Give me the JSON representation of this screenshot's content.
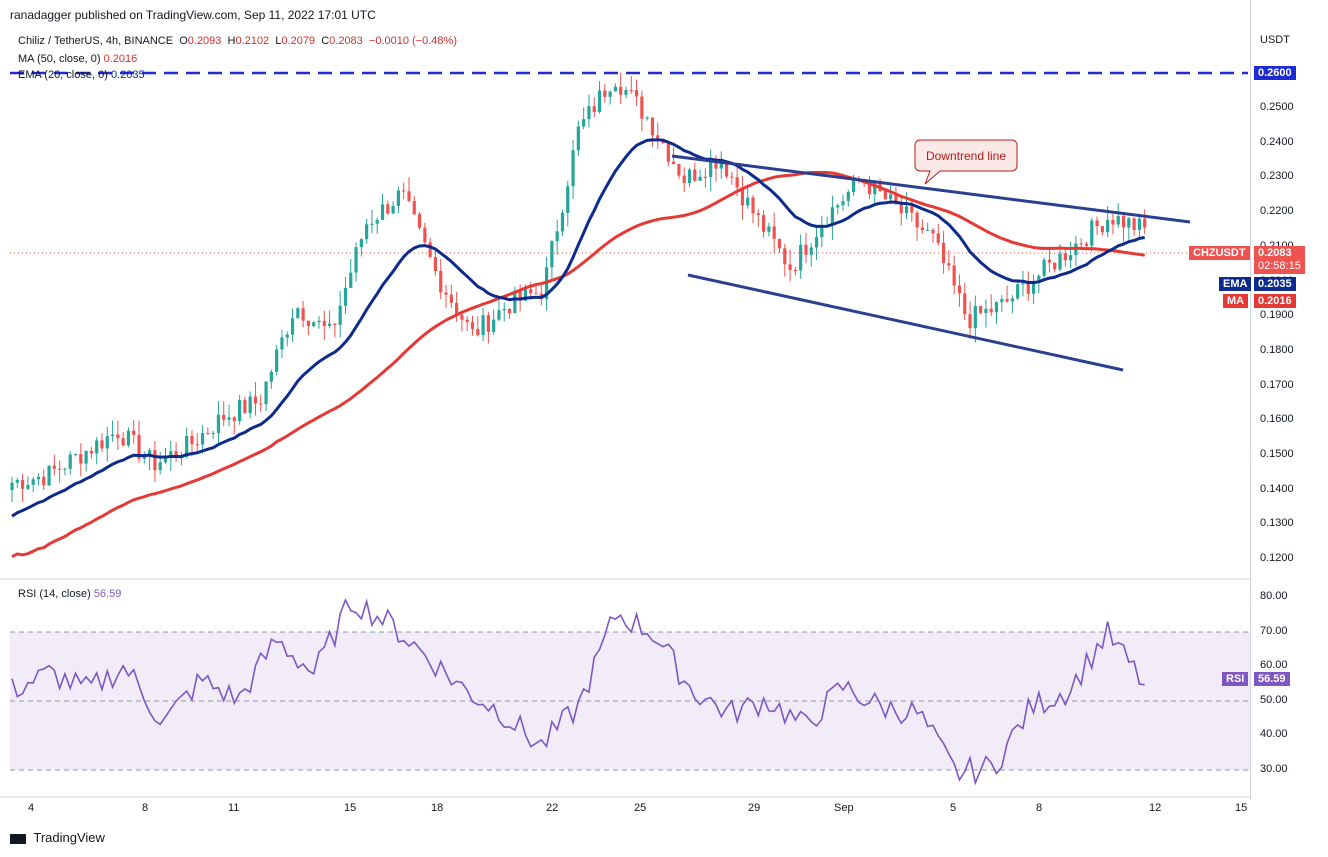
{
  "header": {
    "publisher": "ranadagger published on TradingView.com, Sep 11, 2022 17:01 UTC"
  },
  "legend": {
    "symbol": "Chiliz / TetherUS, 4h, BINANCE",
    "o_label": "O",
    "o": "0.2093",
    "h_label": "H",
    "h": "0.2102",
    "l_label": "L",
    "l": "0.2079",
    "c_label": "C",
    "c": "0.2083",
    "change": "−0.0010 (−0.48%)",
    "ma_label": "MA (50, close, 0)",
    "ma_value": "0.2016",
    "ema_label": "EMA (20, close, 0)",
    "ema_value": "0.2035",
    "rsi_label": "RSI (14, close)",
    "rsi_value": "56.59"
  },
  "price_axis": {
    "unit": "USDT",
    "ticks": [
      "0.2500",
      "0.2400",
      "0.2300",
      "0.2200",
      "0.2100",
      "0.2000",
      "0.1900",
      "0.1800",
      "0.1700",
      "0.1600",
      "0.1500",
      "0.1400",
      "0.1300",
      "0.1200"
    ],
    "resistance_label": "0.2600"
  },
  "tags": {
    "symbol_tag": "CHZUSDT",
    "price": "0.2083",
    "countdown": "02:58:15",
    "ema_tag": "EMA",
    "ema": "0.2035",
    "ma_tag": "MA",
    "ma": "0.2016",
    "rsi_tag": "RSI",
    "rsi": "56.59"
  },
  "rsi_axis": {
    "ticks": [
      "80.00",
      "70.00",
      "60.00",
      "50.00",
      "40.00",
      "30.00"
    ]
  },
  "time_axis": {
    "labels": [
      "4",
      "8",
      "11",
      "15",
      "18",
      "22",
      "25",
      "29",
      "Sep",
      "5",
      "8",
      "12",
      "15"
    ]
  },
  "annotation": {
    "text": "Downtrend line"
  },
  "branding": {
    "logo_text": "TradingView"
  },
  "colors": {
    "up": "#26a69a",
    "down": "#ef5350",
    "ema": "#0d2b8c",
    "ma": "#e53935",
    "rsi": "#7e57c2",
    "resistance": "#1e2bd6",
    "trendline": "#2a3f8f"
  },
  "chart_data": {
    "type": "candlestick",
    "symbol": "CHZUSDT",
    "timeframe": "4h",
    "y_range": [
      0.115,
      0.265
    ],
    "resistance_level": 0.26,
    "close_path": [
      {
        "x": "Sep 2",
        "y": 0.14
      },
      {
        "x": "Sep 4",
        "y": 0.142
      },
      {
        "x": "Sep 6",
        "y": 0.148
      },
      {
        "x": "Sep 8",
        "y": 0.154
      },
      {
        "x": "Sep 10",
        "y": 0.145
      },
      {
        "x": "Sep 11",
        "y": 0.15
      },
      {
        "x": "Sep 13",
        "y": 0.158
      },
      {
        "x": "Sep 14",
        "y": 0.162
      },
      {
        "x": "Sep 15",
        "y": 0.188
      },
      {
        "x": "Sep 16",
        "y": 0.18
      },
      {
        "x": "Sep 17",
        "y": 0.21
      },
      {
        "x": "Sep 18",
        "y": 0.218
      },
      {
        "x": "Sep 19",
        "y": 0.196
      },
      {
        "x": "Sep 20",
        "y": 0.18
      },
      {
        "x": "Sep 21",
        "y": 0.188
      },
      {
        "x": "Sep 22",
        "y": 0.192
      },
      {
        "x": "Sep 23",
        "y": 0.235
      },
      {
        "x": "Sep 24",
        "y": 0.25
      },
      {
        "x": "Sep 25",
        "y": 0.238
      },
      {
        "x": "Sep 26",
        "y": 0.222
      },
      {
        "x": "Sep 28",
        "y": 0.228
      },
      {
        "x": "Sep 29",
        "y": 0.212
      },
      {
        "x": "Sep 30",
        "y": 0.198
      },
      {
        "x": "Sep 31",
        "y": 0.212
      },
      {
        "x": "Sep 2b",
        "y": 0.222
      },
      {
        "x": "Sep 4b",
        "y": 0.214
      },
      {
        "x": "Sep 5",
        "y": 0.206
      },
      {
        "x": "Sep 6",
        "y": 0.184
      },
      {
        "x": "Sep 7",
        "y": 0.188
      },
      {
        "x": "Sep 8",
        "y": 0.196
      },
      {
        "x": "Sep 9",
        "y": 0.204
      },
      {
        "x": "Sep 10",
        "y": 0.212
      },
      {
        "x": "Sep 11",
        "y": 0.2083
      }
    ],
    "ema20_value": 0.2035,
    "ma50_value": 0.2016,
    "rsi_range": [
      25,
      85
    ],
    "rsi_band": [
      30,
      70
    ],
    "rsi_last": 56.59
  }
}
